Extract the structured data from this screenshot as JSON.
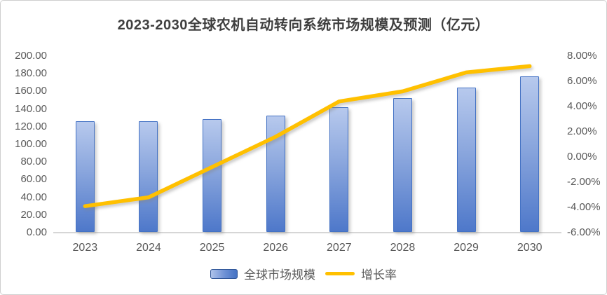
{
  "chart": {
    "title": "2023-2030全球农机自动转向系统市场规模及预测（亿元）",
    "legend": [
      {
        "label": "全球市场规模",
        "type": "bar",
        "color": "#4472C4"
      },
      {
        "label": "增长率",
        "type": "line",
        "color": "#FFC000"
      }
    ]
  },
  "chart_data": {
    "type": "bar",
    "subtype": "bar+line combo",
    "title": "2023-2030全球农机自动转向系统市场规模及预测（亿元）",
    "categories": [
      "2023",
      "2024",
      "2025",
      "2026",
      "2027",
      "2028",
      "2029",
      "2030"
    ],
    "series": [
      {
        "name": "全球市场规模",
        "type": "bar",
        "axis": "left",
        "color": "#4472C4",
        "values": [
          126.5,
          126.5,
          128.5,
          132.5,
          142.0,
          152.5,
          164.5,
          177.0
        ]
      },
      {
        "name": "增长率",
        "type": "line",
        "axis": "right",
        "color": "#FFC000",
        "values": [
          -3.9,
          -3.2,
          -0.8,
          1.6,
          4.4,
          5.2,
          6.7,
          7.2
        ]
      }
    ],
    "left_axis": {
      "min": 0,
      "max": 200,
      "step": 20,
      "tick_labels": [
        "200.00",
        "180.00",
        "160.00",
        "140.00",
        "120.00",
        "100.00",
        "80.00",
        "60.00",
        "40.00",
        "20.00",
        "0.00"
      ]
    },
    "right_axis": {
      "min": -6,
      "max": 8,
      "step": 2,
      "tick_labels": [
        "8.00%",
        "6.00%",
        "4.00%",
        "2.00%",
        "0.00%",
        "-2.00%",
        "-4.00%",
        "-6.00%"
      ]
    },
    "grid": "off",
    "legend_position": "bottom"
  }
}
